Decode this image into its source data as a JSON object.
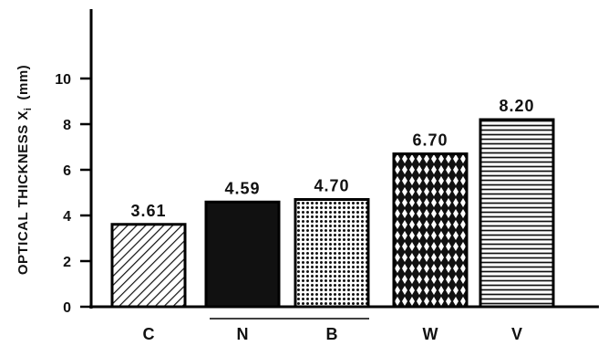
{
  "chart_data": {
    "type": "bar",
    "categories": [
      "C",
      "N",
      "B",
      "W",
      "V"
    ],
    "values": [
      3.61,
      4.59,
      4.7,
      6.7,
      8.2
    ],
    "value_labels": [
      "3.61",
      "4.59",
      "4.70",
      "6.70",
      "8.20"
    ],
    "ylabel": "OPTICAL THICKNESS X",
    "ylabel_subscript": "i",
    "ylabel_unit": "(mm)",
    "yticks": [
      0,
      2,
      4,
      6,
      8,
      10
    ],
    "ylim": [
      0,
      12
    ],
    "grid": false,
    "bar_fills": [
      "diagonal-hatch",
      "solid-black",
      "dotted",
      "crosshatch",
      "horizontal-lines"
    ]
  }
}
